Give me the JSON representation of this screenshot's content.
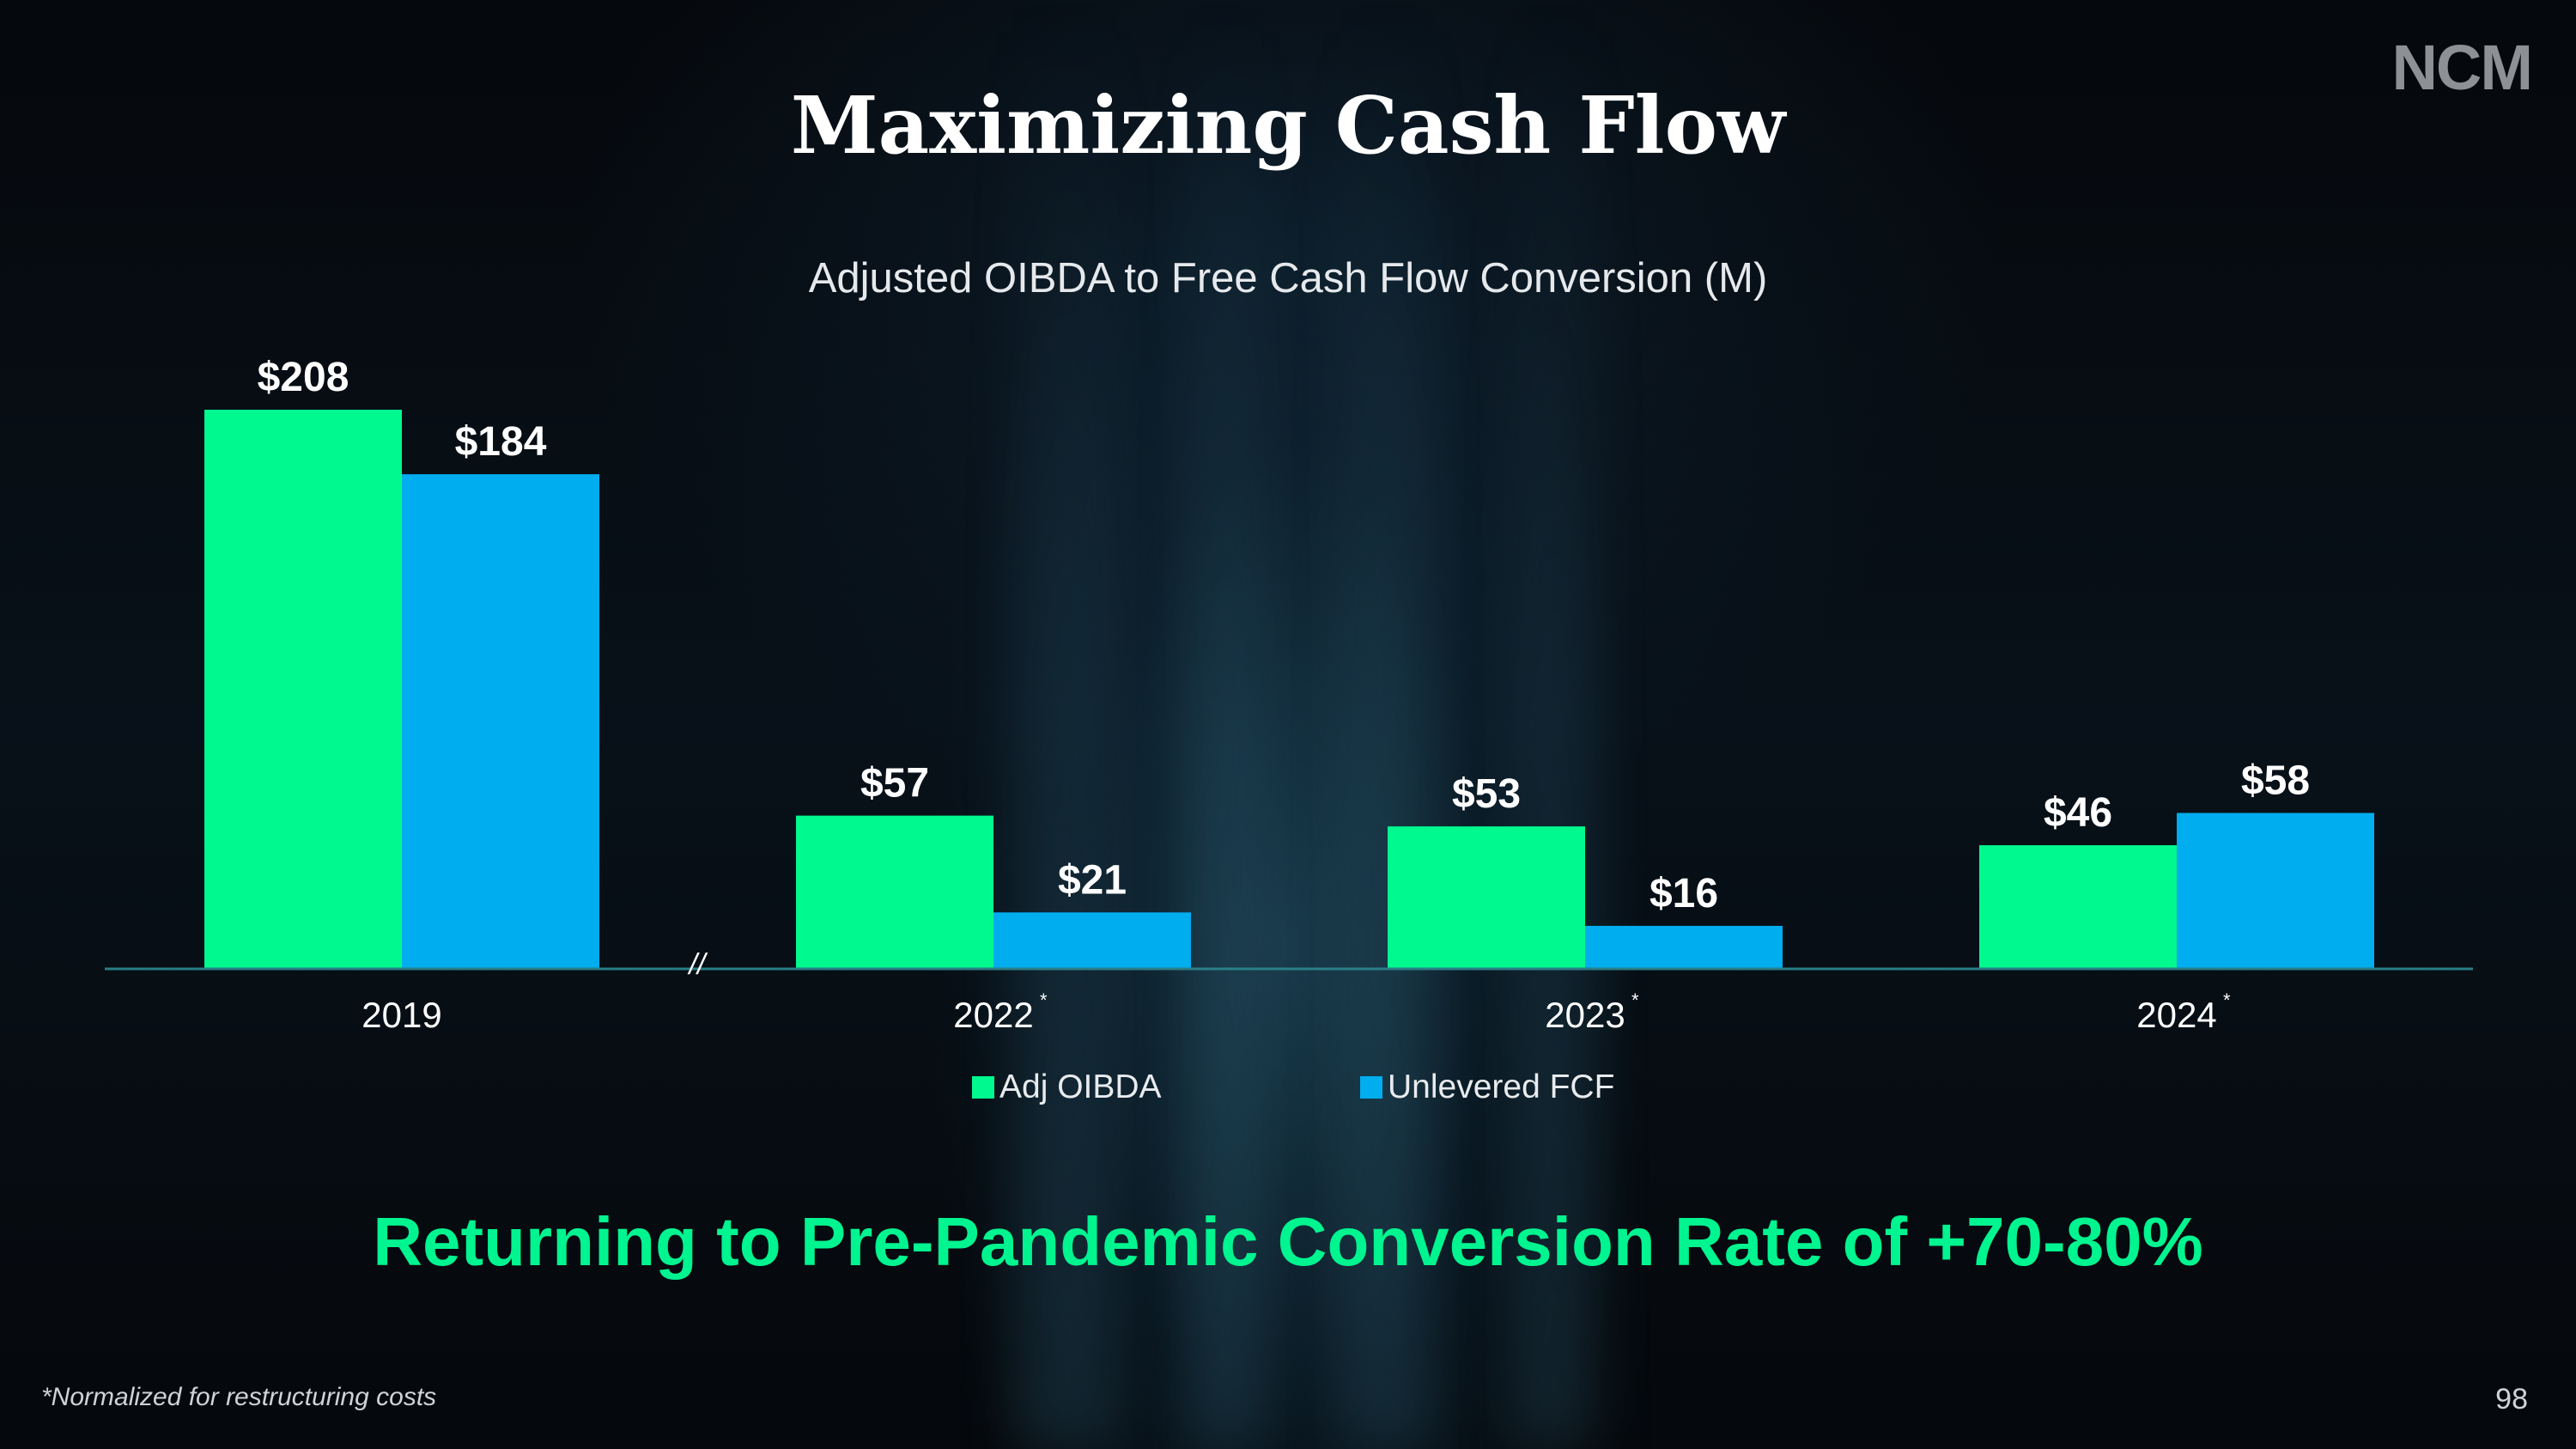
{
  "logo": "NCM",
  "title": "Maximizing Cash Flow",
  "subtitle": "Adjusted OIBDA to Free Cash Flow Conversion (M)",
  "headline": "Returning to Pre-Pandemic Conversion Rate of +70-80%",
  "footnote": "*Normalized for restructuring costs",
  "page_number": "98",
  "axis_break": "//",
  "colors": {
    "adj_oibda": "#00f98f",
    "unlevered_fcf": "#00adef",
    "headline": "#00f48f",
    "axis": "#2a7f86"
  },
  "chart_data": {
    "type": "bar",
    "title": "Adjusted OIBDA to Free Cash Flow Conversion (M)",
    "categories": [
      "2019",
      "2022",
      "2023",
      "2024"
    ],
    "category_marks": [
      "",
      "*",
      "*",
      "*"
    ],
    "series": [
      {
        "name": "Adj OIBDA",
        "values": [
          208,
          57,
          53,
          46
        ],
        "labels": [
          "$208",
          "$57",
          "$53",
          "$46"
        ]
      },
      {
        "name": "Unlevered FCF",
        "values": [
          184,
          21,
          16,
          58
        ],
        "labels": [
          "$184",
          "$21",
          "$16",
          "$58"
        ]
      }
    ],
    "ylim": [
      0,
      208
    ],
    "grid": false,
    "legend": "bottom-center",
    "axis_break_after": "2019"
  }
}
